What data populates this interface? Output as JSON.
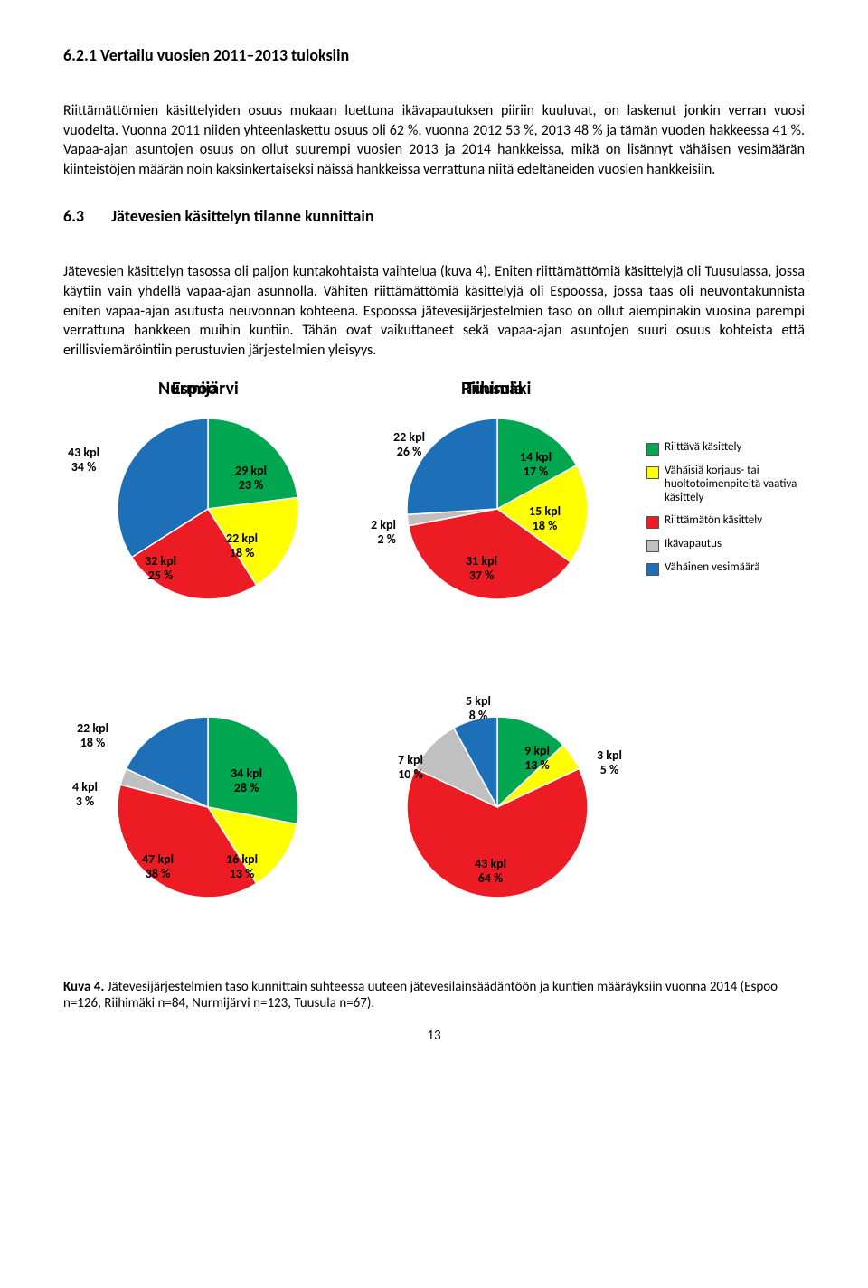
{
  "heading621": "6.2.1   Vertailu vuosien 2011–2013 tuloksiin",
  "para1": "Riittämättömien käsittelyiden osuus mukaan luettuna ikävapautuksen piiriin kuuluvat, on laskenut jonkin verran vuosi vuodelta. Vuonna 2011 niiden yhteenlaskettu osuus oli 62 %, vuonna 2012 53 %, 2013 48 % ja tämän vuoden hakkeessa 41 %. Vapaa-ajan asuntojen osuus on ollut suurempi vuosien 2013 ja 2014 hankkeissa, mikä on lisännyt vähäisen vesimäärän kiinteistöjen määrän noin kaksinkertaiseksi näissä hankkeissa verrattuna niitä edeltäneiden vuosien hankkeisiin.",
  "heading63_num": "6.3",
  "heading63_text": "Jätevesien käsittelyn tilanne kunnittain",
  "para2": "Jätevesien käsittelyn tasossa oli paljon kuntakohtaista vaihtelua (kuva 4). Eniten riittämättömiä käsittelyjä oli Tuusulassa, jossa käytiin vain yhdellä vapaa-ajan asunnolla. Vähiten riittämättömiä käsittelyjä oli Espoossa, jossa taas oli neuvontakunnista eniten vapaa-ajan asutusta neuvonnan kohteena. Espoossa jätevesijärjestelmien taso on ollut aiempinakin vuosina parempi verrattuna hankkeen muihin kuntiin. Tähän ovat vaikuttaneet sekä vapaa-ajan asuntojen suuri osuus kohteista että erillisviemäröintiin perustuvien järjestelmien yleisyys.",
  "legend": [
    {
      "color": "#00a650",
      "text": "Riittävä käsittely"
    },
    {
      "color": "#ffff00",
      "text": "Vähäisiä korjaus- tai huoltotoimenpiteitä vaativa käsittely"
    },
    {
      "color": "#ed1c24",
      "text": "Riittämätön käsittely"
    },
    {
      "color": "#c0c0c0",
      "text": "Ikävapautus"
    },
    {
      "color": "#1d70b7",
      "text": "Vähäinen vesimäärä"
    }
  ],
  "charts": {
    "espoo": {
      "title": "Espoo",
      "slices": [
        {
          "label": "29 kpl",
          "pct": "23 %",
          "color": "#00a650",
          "ang0": 0,
          "ang1": 82.8
        },
        {
          "label": "22 kpl",
          "pct": "18 %",
          "color": "#ffff00",
          "ang0": 82.8,
          "ang1": 147.6
        },
        {
          "label": "32 kpl",
          "pct": "25 %",
          "color": "#ed1c24",
          "ang0": 147.6,
          "ang1": 237.6
        },
        {
          "label": "43 kpl",
          "pct": "34 %",
          "color": "#1d70b7",
          "ang0": 237.6,
          "ang1": 360
        }
      ]
    },
    "riihimaki": {
      "title": "Riihimäki",
      "slices": [
        {
          "label": "14 kpl",
          "pct": "17 %",
          "color": "#00a650",
          "ang0": 0,
          "ang1": 61.2
        },
        {
          "label": "15 kpl",
          "pct": "18 %",
          "color": "#ffff00",
          "ang0": 61.2,
          "ang1": 126
        },
        {
          "label": "31 kpl",
          "pct": "37 %",
          "color": "#ed1c24",
          "ang0": 126,
          "ang1": 259.2
        },
        {
          "label": "2 kpl",
          "pct": "2 %",
          "color": "#c0c0c0",
          "ang0": 259.2,
          "ang1": 266.4
        },
        {
          "label": "22 kpl",
          "pct": "26 %",
          "color": "#1d70b7",
          "ang0": 266.4,
          "ang1": 360
        }
      ]
    },
    "nurmijarvi": {
      "title": "Nurmijärvi",
      "slices": [
        {
          "label": "34 kpl",
          "pct": "28 %",
          "color": "#00a650",
          "ang0": 0,
          "ang1": 100.8
        },
        {
          "label": "16 kpl",
          "pct": "13 %",
          "color": "#ffff00",
          "ang0": 100.8,
          "ang1": 147.6
        },
        {
          "label": "47 kpl",
          "pct": "38 %",
          "color": "#ed1c24",
          "ang0": 147.6,
          "ang1": 284.4
        },
        {
          "label": "4 kpl",
          "pct": "3 %",
          "color": "#c0c0c0",
          "ang0": 284.4,
          "ang1": 295.2
        },
        {
          "label": "22 kpl",
          "pct": "18 %",
          "color": "#1d70b7",
          "ang0": 295.2,
          "ang1": 360
        }
      ]
    },
    "tuusula": {
      "title": "Tuusula",
      "slices": [
        {
          "label": "9 kpl",
          "pct": "13 %",
          "color": "#00a650",
          "ang0": 0,
          "ang1": 46.8
        },
        {
          "label": "3 kpl",
          "pct": "5 %",
          "color": "#ffff00",
          "ang0": 46.8,
          "ang1": 64.8
        },
        {
          "label": "43 kpl",
          "pct": "64 %",
          "color": "#ed1c24",
          "ang0": 64.8,
          "ang1": 295.2
        },
        {
          "label": "7 kpl",
          "pct": "10 %",
          "color": "#c0c0c0",
          "ang0": 295.2,
          "ang1": 331.2
        },
        {
          "label": "5 kpl",
          "pct": "8 %",
          "color": "#1d70b7",
          "ang0": 331.2,
          "ang1": 360
        }
      ]
    }
  },
  "caption_bold": "Kuva 4.",
  "caption_text": " Jätevesijärjestelmien taso kunnittain suhteessa uuteen jätevesilainsäädäntöön ja kuntien määräyksiin vuonna 2014 (Espoo n=126, Riihimäki n=84, Nurmijärvi n=123, Tuusula n=67).",
  "pagenum": "13"
}
